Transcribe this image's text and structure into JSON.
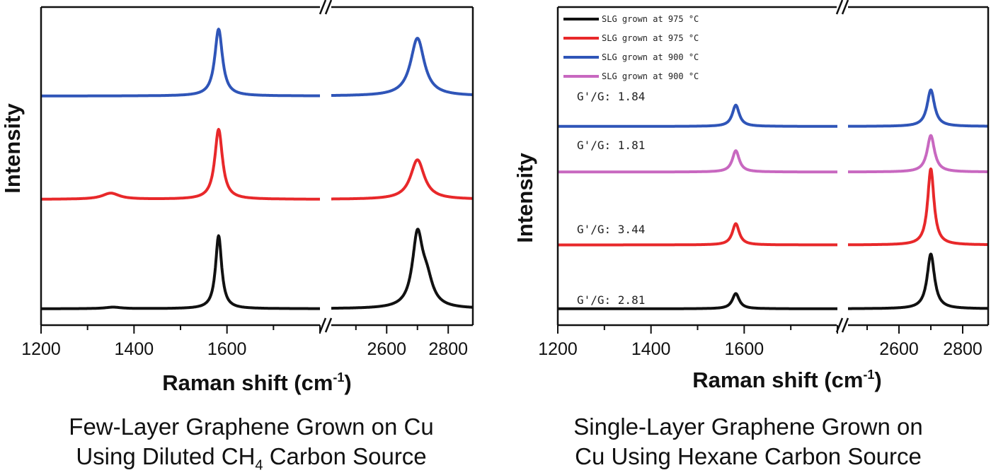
{
  "chart_data": [
    {
      "type": "line",
      "xlabel_main": "Raman shift (cm",
      "xlabel_sup": "-1",
      "xlabel_close": ")",
      "ylabel": "Intensity",
      "xlim_left": [
        1200,
        1800
      ],
      "xlim_right": [
        2420,
        2880
      ],
      "xticks_left": [
        1200,
        1400,
        1600
      ],
      "xticks_right": [
        2600,
        2800
      ],
      "axis_break": true,
      "legend": null,
      "caption_line1": "Few-Layer Graphene Grown on Cu",
      "caption_line2_pre": "Using Diluted CH",
      "caption_line2_sub": "4",
      "caption_line2_post": " Carbon Source",
      "series": [
        {
          "color": "#2f55b8",
          "offset": 0.74,
          "peaks": [
            {
              "x": 1582,
              "amp": 0.22,
              "w": 10
            },
            {
              "x": 2700,
              "amp": 0.19,
              "w": 27
            }
          ]
        },
        {
          "color": "#e8282a",
          "offset": 0.4,
          "peaks": [
            {
              "x": 1350,
              "amp": 0.02,
              "w": 22
            },
            {
              "x": 1582,
              "amp": 0.23,
              "w": 10
            },
            {
              "x": 2700,
              "amp": 0.13,
              "w": 27
            }
          ]
        },
        {
          "color": "#111111",
          "offset": 0.04,
          "peaks": [
            {
              "x": 1355,
              "amp": 0.005,
              "w": 20
            },
            {
              "x": 1582,
              "amp": 0.24,
              "w": 8
            },
            {
              "x": 2700,
              "amp": 0.23,
              "w": 20
            },
            {
              "x": 2730,
              "amp": 0.08,
              "w": 24
            }
          ]
        }
      ]
    },
    {
      "type": "line",
      "xlabel_main": "Raman shift (cm",
      "xlabel_sup": "-1",
      "xlabel_close": ")",
      "ylabel": "Intensity",
      "xlim_left": [
        1200,
        1800
      ],
      "xlim_right": [
        2440,
        2880
      ],
      "xticks_left": [
        1200,
        1400,
        1600
      ],
      "xticks_right": [
        2600,
        2800
      ],
      "axis_break": true,
      "legend": "top-left",
      "caption_line1": "Single-Layer Graphene Grown on",
      "caption_line2_pre": "Cu Using Hexane Carbon Source",
      "caption_line2_sub": "",
      "caption_line2_post": "",
      "series": [
        {
          "name": "SLG grown at 975 °C",
          "color": "#111111",
          "offset": 0.04,
          "ratio_label": "G'/G: 2.81",
          "peaks": [
            {
              "x": 1582,
              "amp": 0.05,
              "w": 9
            },
            {
              "x": 2700,
              "amp": 0.18,
              "w": 14
            }
          ]
        },
        {
          "name": "SLG grown at 975 °C",
          "color": "#e8282a",
          "offset": 0.25,
          "ratio_label": "G'/G: 3.44",
          "peaks": [
            {
              "x": 1582,
              "amp": 0.07,
              "w": 9
            },
            {
              "x": 2700,
              "amp": 0.25,
              "w": 12
            }
          ]
        },
        {
          "name": "SLG grown at 900 °C",
          "color": "#2f55b8",
          "offset": 0.64,
          "ratio_label": "G'/G: 1.84",
          "peaks": [
            {
              "x": 1582,
              "amp": 0.07,
              "w": 9
            },
            {
              "x": 2700,
              "amp": 0.12,
              "w": 14
            }
          ]
        },
        {
          "name": "SLG grown at 900 °C",
          "color": "#c868c0",
          "offset": 0.49,
          "ratio_label": "G'/G: 1.81",
          "peaks": [
            {
              "x": 1582,
              "amp": 0.07,
              "w": 9
            },
            {
              "x": 2700,
              "amp": 0.12,
              "w": 14
            }
          ]
        }
      ]
    }
  ]
}
